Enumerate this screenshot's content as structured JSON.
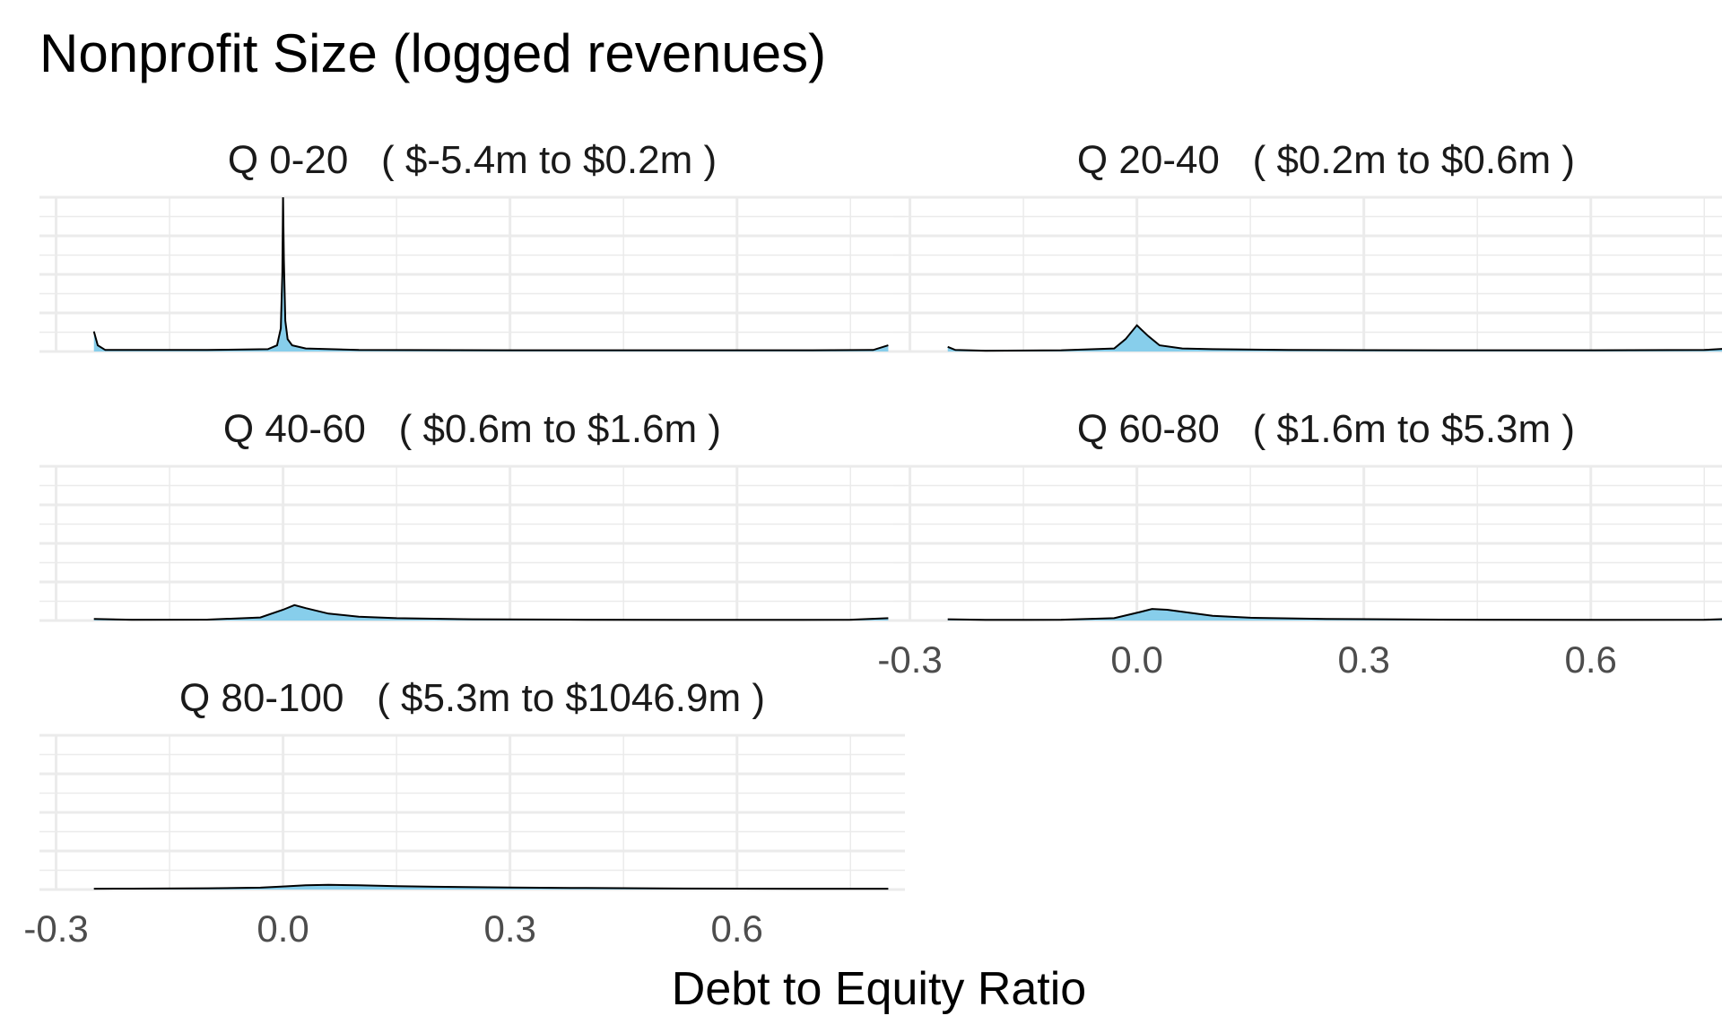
{
  "chart_data": {
    "type": "area",
    "title": "Nonprofit Size (logged revenues)",
    "xlabel": "Debt to Equity Ratio",
    "ylabel": "",
    "xlim": [
      -0.3,
      0.8
    ],
    "x_ticks": [
      "-0.3",
      "0.0",
      "0.3",
      "0.6"
    ],
    "x_tick_values": [
      -0.3,
      0.0,
      0.3,
      0.6
    ],
    "grid": true,
    "fill_color": "#87CEEB",
    "line_color": "#000000",
    "grid_color": "#ebebeb",
    "panels": [
      {
        "label": "Q 0-20   ( $-5.4m to $0.2m )",
        "x": [
          -0.25,
          -0.245,
          -0.235,
          -0.2,
          -0.1,
          -0.02,
          -0.008,
          -0.003,
          -0.001,
          0.0,
          0.001,
          0.003,
          0.006,
          0.012,
          0.03,
          0.1,
          0.3,
          0.5,
          0.7,
          0.78,
          0.8
        ],
        "y": [
          0.13,
          0.04,
          0.01,
          0.01,
          0.01,
          0.015,
          0.04,
          0.15,
          0.5,
          1.0,
          0.6,
          0.2,
          0.08,
          0.04,
          0.02,
          0.01,
          0.008,
          0.008,
          0.008,
          0.01,
          0.04
        ]
      },
      {
        "label": "Q 20-40   ( $0.2m to $0.6m )",
        "x": [
          -0.25,
          -0.24,
          -0.2,
          -0.1,
          -0.03,
          -0.015,
          0.0,
          0.015,
          0.03,
          0.06,
          0.1,
          0.2,
          0.4,
          0.6,
          0.75,
          0.8
        ],
        "y": [
          0.03,
          0.01,
          0.005,
          0.008,
          0.02,
          0.08,
          0.17,
          0.1,
          0.04,
          0.02,
          0.015,
          0.01,
          0.008,
          0.008,
          0.01,
          0.025
        ]
      },
      {
        "label": "Q 40-60   ( $0.6m to $1.6m )",
        "x": [
          -0.25,
          -0.2,
          -0.1,
          -0.03,
          0.0,
          0.015,
          0.03,
          0.06,
          0.1,
          0.15,
          0.25,
          0.4,
          0.6,
          0.75,
          0.8
        ],
        "y": [
          0.01,
          0.005,
          0.006,
          0.02,
          0.07,
          0.1,
          0.08,
          0.045,
          0.025,
          0.015,
          0.008,
          0.005,
          0.004,
          0.005,
          0.015
        ]
      },
      {
        "label": "Q 60-80   ( $1.6m to $5.3m )",
        "x": [
          -0.25,
          -0.2,
          -0.1,
          -0.03,
          0.0,
          0.02,
          0.04,
          0.07,
          0.1,
          0.15,
          0.25,
          0.4,
          0.6,
          0.75,
          0.8
        ],
        "y": [
          0.008,
          0.004,
          0.005,
          0.015,
          0.05,
          0.075,
          0.07,
          0.05,
          0.03,
          0.018,
          0.01,
          0.006,
          0.004,
          0.005,
          0.012
        ]
      },
      {
        "label": "Q 80-100   ( $5.3m to $1046.9m )",
        "x": [
          -0.25,
          -0.2,
          -0.1,
          -0.03,
          0.0,
          0.03,
          0.06,
          0.1,
          0.15,
          0.2,
          0.3,
          0.4,
          0.5,
          0.7,
          0.8
        ],
        "y": [
          0.005,
          0.006,
          0.008,
          0.012,
          0.02,
          0.028,
          0.03,
          0.028,
          0.022,
          0.018,
          0.013,
          0.01,
          0.007,
          0.005,
          0.005
        ]
      }
    ]
  }
}
